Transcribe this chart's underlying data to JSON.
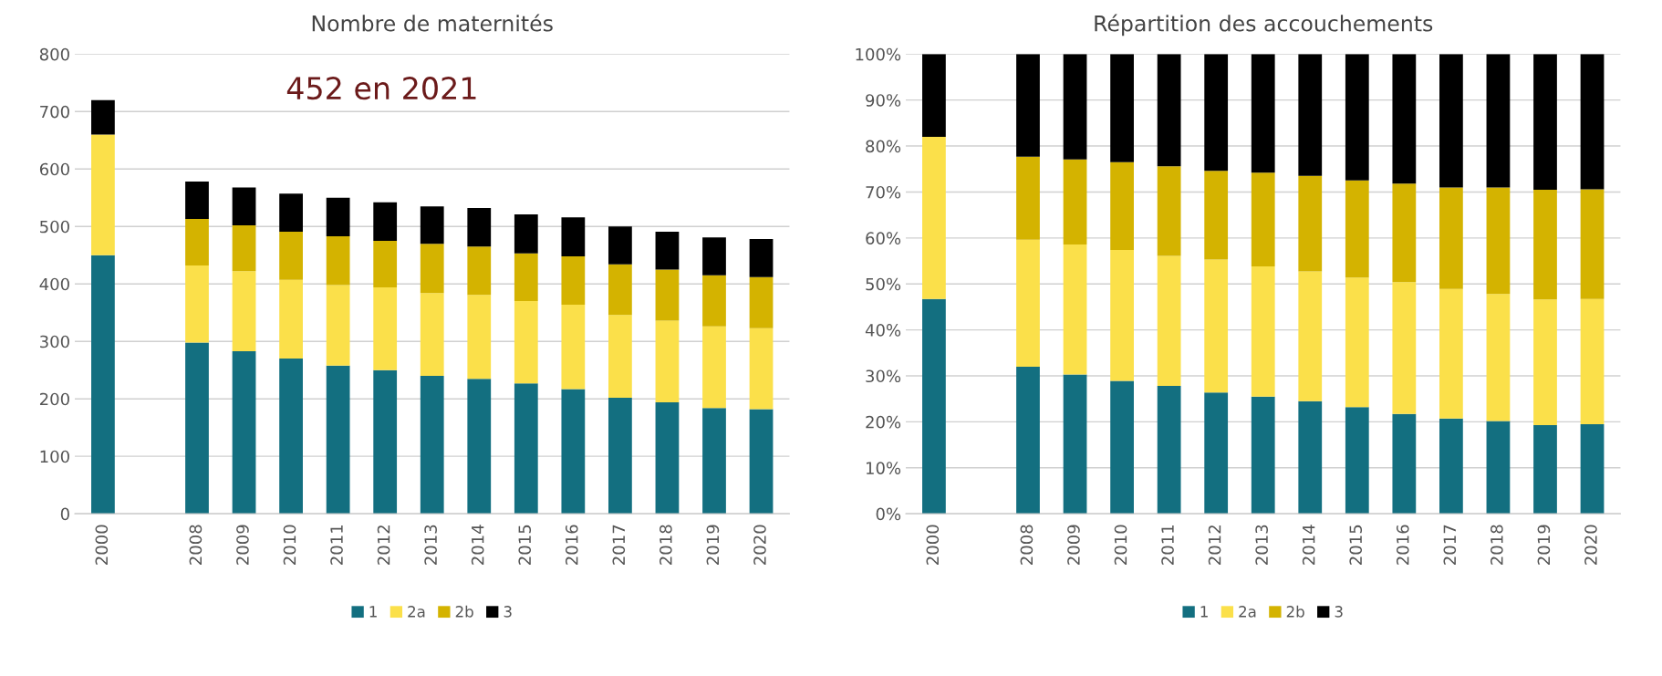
{
  "chart_data": [
    {
      "type": "bar",
      "title": "Nombre de maternités",
      "stacked": true,
      "grid": "y",
      "legend": "bottom",
      "categories": [
        "2000",
        null,
        "2008",
        "2009",
        "2010",
        "2011",
        "2012",
        "2013",
        "2014",
        "2015",
        "2016",
        "2017",
        "2018",
        "2019",
        "2020"
      ],
      "ylim": [
        0,
        800
      ],
      "yticks": [
        0,
        100,
        200,
        300,
        400,
        500,
        600,
        700,
        800
      ],
      "annotations": [
        "452 en 2021"
      ],
      "series": [
        {
          "name": "1",
          "color": "#136f80",
          "values": [
            450,
            null,
            298,
            283,
            270,
            258,
            250,
            240,
            235,
            227,
            217,
            202,
            194,
            184,
            182
          ]
        },
        {
          "name": "2a",
          "color": "#fbe04a",
          "values": [
            210,
            null,
            134,
            139,
            137,
            140,
            144,
            144,
            146,
            143,
            147,
            144,
            142,
            142,
            141
          ]
        },
        {
          "name": "2b",
          "color": "#d4b300",
          "values": [
            null,
            null,
            81,
            80,
            84,
            85,
            81,
            86,
            84,
            83,
            84,
            88,
            89,
            89,
            89
          ]
        },
        {
          "name": "3",
          "color": "#000000",
          "values": [
            60,
            null,
            65,
            66,
            66,
            67,
            67,
            65,
            67,
            68,
            68,
            66,
            66,
            66,
            66
          ]
        }
      ]
    },
    {
      "type": "bar",
      "title": "Répartition des accouchements",
      "stacked": true,
      "grid": "y",
      "legend": "bottom",
      "categories": [
        "2000",
        null,
        "2008",
        "2009",
        "2010",
        "2011",
        "2012",
        "2013",
        "2014",
        "2015",
        "2016",
        "2017",
        "2018",
        "2019",
        "2020"
      ],
      "ylim": [
        0,
        100
      ],
      "yticks": [
        {
          "value": 0,
          "label": "0%"
        },
        {
          "value": 10,
          "label": "10%"
        },
        {
          "value": 20,
          "label": "20%"
        },
        {
          "value": 30,
          "label": "30%"
        },
        {
          "value": 40,
          "label": "40%"
        },
        {
          "value": 50,
          "label": "50%"
        },
        {
          "value": 60,
          "label": "60%"
        },
        {
          "value": 70,
          "label": "70%"
        },
        {
          "value": 80,
          "label": "80%"
        },
        {
          "value": 90,
          "label": "90%"
        },
        {
          "value": 100,
          "label": "100%"
        }
      ],
      "series": [
        {
          "name": "1",
          "color": "#136f80",
          "values": [
            46.7,
            null,
            32.0,
            30.3,
            28.9,
            27.8,
            26.4,
            25.5,
            24.5,
            23.2,
            21.7,
            20.7,
            20.2,
            19.3,
            19.5
          ]
        },
        {
          "name": "2a",
          "color": "#fbe04a",
          "values": [
            35.3,
            null,
            27.6,
            28.3,
            28.5,
            28.3,
            28.9,
            28.3,
            28.2,
            28.2,
            28.7,
            28.2,
            27.6,
            27.3,
            27.2
          ]
        },
        {
          "name": "2b",
          "color": "#d4b300",
          "values": [
            null,
            null,
            18.1,
            18.5,
            19.1,
            19.5,
            19.3,
            20.4,
            20.8,
            21.1,
            21.4,
            22.1,
            23.2,
            23.9,
            23.9
          ]
        },
        {
          "name": "3",
          "color": "#000000",
          "values": [
            18.0,
            null,
            22.3,
            22.9,
            23.5,
            24.4,
            25.4,
            25.8,
            26.5,
            27.5,
            28.2,
            29.0,
            29.0,
            29.5,
            29.4
          ]
        }
      ]
    }
  ]
}
